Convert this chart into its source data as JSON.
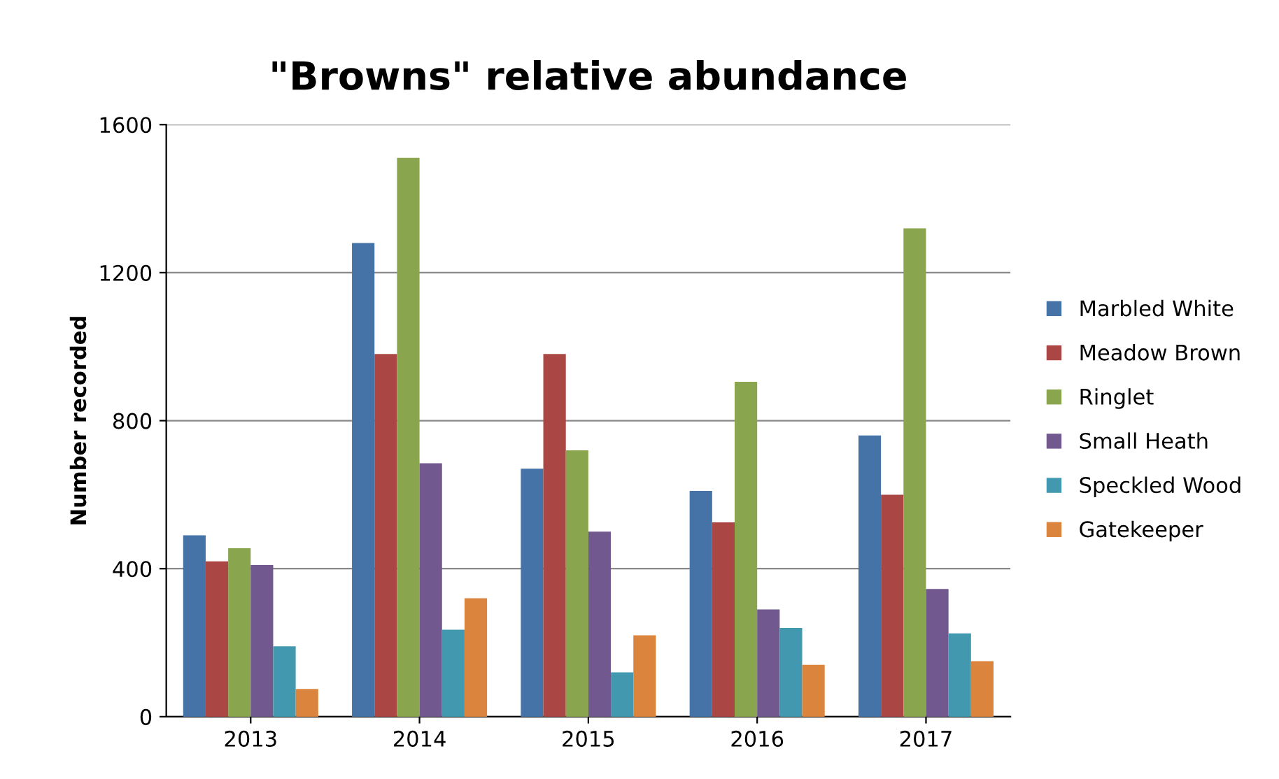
{
  "chart_data": {
    "type": "bar",
    "title": "\"Browns\" relative abundance",
    "ylabel": "Number recorded",
    "categories": [
      "2013",
      "2014",
      "2015",
      "2016",
      "2017"
    ],
    "series": [
      {
        "name": "Marbled White",
        "color": "#4572a7",
        "values": [
          490,
          1280,
          670,
          610,
          760
        ]
      },
      {
        "name": "Meadow Brown",
        "color": "#aa4643",
        "values": [
          420,
          980,
          980,
          525,
          600
        ]
      },
      {
        "name": "Ringlet",
        "color": "#89a54e",
        "values": [
          455,
          1510,
          720,
          905,
          1320
        ]
      },
      {
        "name": "Small Heath",
        "color": "#71588f",
        "values": [
          410,
          685,
          500,
          290,
          345
        ]
      },
      {
        "name": "Speckled Wood",
        "color": "#4198af",
        "values": [
          190,
          235,
          120,
          240,
          225
        ]
      },
      {
        "name": "Gatekeeper",
        "color": "#db843d",
        "values": [
          75,
          320,
          220,
          140,
          150
        ]
      }
    ],
    "ylim": [
      0,
      1600
    ],
    "yticks": [
      0,
      400,
      800,
      1200,
      1600
    ],
    "grid": "y",
    "legend": "right"
  }
}
